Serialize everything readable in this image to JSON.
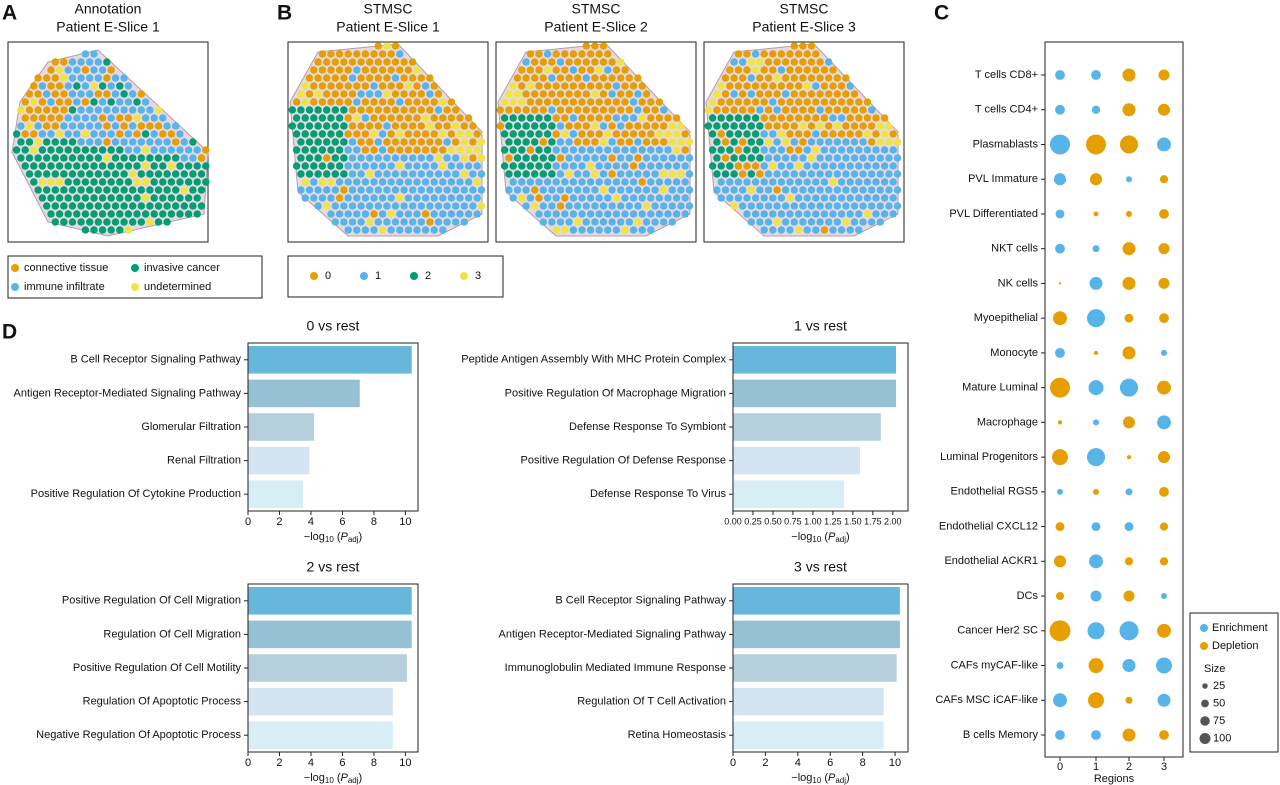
{
  "panel_labels": [
    "A",
    "B",
    "C",
    "D"
  ],
  "slices": [
    {
      "title": [
        "Annotation",
        "Patient E-Slice 1"
      ]
    },
    {
      "title": [
        "STMSC",
        "Patient E-Slice 1"
      ]
    },
    {
      "title": [
        "STMSC",
        "Patient E-Slice 2"
      ]
    },
    {
      "title": [
        "STMSC",
        "Patient E-Slice 3"
      ]
    }
  ],
  "annotation_legend": [
    {
      "label": "connective tissue",
      "color": "#e69f00"
    },
    {
      "label": "invasive cancer",
      "color": "#009e73"
    },
    {
      "label": "immune infiltrate",
      "color": "#56b4e9"
    },
    {
      "label": "undetermined",
      "color": "#f0e442"
    }
  ],
  "cluster_legend": [
    {
      "label": "0",
      "color": "#e69f00"
    },
    {
      "label": "1",
      "color": "#56b4e9"
    },
    {
      "label": "2",
      "color": "#009e73"
    },
    {
      "label": "3",
      "color": "#f0e442"
    }
  ],
  "chart_data": [
    {
      "type": "dot",
      "categories": [
        "T cells CD8+",
        "T cells CD4+",
        "Plasmablasts",
        "PVL Immature",
        "PVL Differentiated",
        "NKT cells",
        "NK cells",
        "Myoepithelial",
        "Monocyte",
        "Mature Luminal",
        "Macrophage",
        "Luminal Progenitors",
        "Endothelial RGS5",
        "Endothelial CXCL12",
        "Endothelial ACKR1",
        "DCs",
        "Cancer Her2 SC",
        "CAFs myCAF-like",
        "CAFs MSC iCAF-like",
        "B cells Memory"
      ],
      "x_categories": [
        "0",
        "1",
        "2",
        "3"
      ],
      "xlabel": "Regions",
      "series": [
        {
          "name": "Enrichment",
          "color": "#56b4e9",
          "values": [
            [
              80,
              80,
              null,
              null
            ],
            [
              80,
              55,
              null,
              null
            ],
            [
              330,
              null,
              null,
              160
            ],
            [
              120,
              null,
              30,
              null
            ],
            [
              65,
              null,
              null,
              null
            ],
            [
              80,
              40,
              null,
              null
            ],
            [
              null,
              140,
              null,
              null
            ],
            [
              null,
              270,
              null,
              null
            ],
            [
              80,
              null,
              null,
              30
            ],
            [
              null,
              185,
              270,
              null
            ],
            [
              null,
              30,
              null,
              160
            ],
            [
              null,
              270,
              null,
              null
            ],
            [
              30,
              null,
              40,
              null
            ],
            [
              null,
              65,
              65,
              null
            ],
            [
              null,
              160,
              null,
              null
            ],
            [
              null,
              100,
              null,
              30
            ],
            [
              null,
              240,
              300,
              null
            ],
            [
              40,
              null,
              140,
              210
            ],
            [
              160,
              null,
              null,
              140
            ],
            [
              80,
              80,
              null,
              null
            ]
          ]
        },
        {
          "name": "Depletion",
          "color": "#e69f00",
          "values": [
            [
              null,
              null,
              140,
              100
            ],
            [
              null,
              null,
              140,
              120
            ],
            [
              null,
              330,
              270,
              null
            ],
            [
              null,
              120,
              null,
              55
            ],
            [
              null,
              20,
              30,
              80
            ],
            [
              null,
              null,
              140,
              100
            ],
            [
              5,
              null,
              140,
              100
            ],
            [
              160,
              null,
              65,
              80
            ],
            [
              null,
              15,
              140,
              null
            ],
            [
              330,
              null,
              null,
              160
            ],
            [
              15,
              null,
              120,
              null
            ],
            [
              210,
              null,
              15,
              120
            ],
            [
              null,
              30,
              null,
              80
            ],
            [
              65,
              null,
              null,
              55
            ],
            [
              120,
              null,
              55,
              55
            ],
            [
              55,
              null,
              100,
              null
            ],
            [
              360,
              null,
              null,
              160
            ],
            [
              null,
              185,
              null,
              null
            ],
            [
              null,
              210,
              40,
              null
            ],
            [
              null,
              null,
              140,
              80
            ]
          ]
        }
      ],
      "size_legend": {
        "title": "Size",
        "values": [
          25,
          50,
          75,
          100
        ]
      }
    },
    {
      "type": "barh",
      "title": "0 vs rest",
      "categories": [
        "B Cell Receptor Signaling Pathway",
        "Antigen Receptor-Mediated Signaling Pathway",
        "Glomerular Filtration",
        "Renal Filtration",
        "Positive Regulation Of Cytokine Production"
      ],
      "values": [
        10.4,
        7.1,
        4.2,
        3.9,
        3.5
      ],
      "colors": [
        "#67b7da",
        "#96c0d3",
        "#b6cfdc",
        "#d4e4f2",
        "#d8eef6"
      ],
      "xlim": [
        0,
        10.8
      ],
      "xticks": [
        0,
        2,
        4,
        6,
        8,
        10
      ],
      "xlabel": [
        "−log",
        "10",
        " (",
        "P",
        "adj",
        ")"
      ]
    },
    {
      "type": "barh",
      "title": "1 vs rest",
      "categories": [
        "Peptide Antigen Assembly With MHC Protein Complex",
        "Positive Regulation Of Macrophage Migration",
        "Defense Response To Symbiont",
        "Positive Regulation Of Defense Response",
        "Defense Response To Virus"
      ],
      "values": [
        2.04,
        2.04,
        1.85,
        1.59,
        1.39
      ],
      "colors": [
        "#67b7da",
        "#96c0d3",
        "#b6cfdc",
        "#d4e4f2",
        "#d8eef6"
      ],
      "xlim": [
        0,
        2.19
      ],
      "xticks": [
        {
          "value": 0,
          "label": "0.00"
        },
        0.25,
        {
          "value": 0.5,
          "label": "0.50"
        },
        0.75,
        {
          "value": 1,
          "label": "1.00"
        },
        1.25,
        {
          "value": 1.5,
          "label": "1.50"
        },
        1.75,
        {
          "value": 2,
          "label": "2.00"
        }
      ],
      "xlabel": [
        "−log",
        "10",
        " (",
        "P",
        "adj",
        ")"
      ]
    },
    {
      "type": "barh",
      "title": "2 vs rest",
      "categories": [
        "Positive Regulation Of Cell Migration",
        "Regulation Of Cell Migration",
        "Positive Regulation Of Cell Motility",
        "Regulation Of Apoptotic Process",
        "Negative Regulation Of Apoptotic Process"
      ],
      "values": [
        10.4,
        10.4,
        10.1,
        9.2,
        9.2
      ],
      "colors": [
        "#67b7da",
        "#96c0d3",
        "#b6cfdc",
        "#d4e4f2",
        "#d8eef6"
      ],
      "xlim": [
        0,
        10.8
      ],
      "xticks": [
        0,
        2,
        4,
        6,
        8,
        10
      ],
      "xlabel": [
        "−log",
        "10",
        " (",
        "P",
        "adj",
        ")"
      ]
    },
    {
      "type": "barh",
      "title": "3 vs rest",
      "categories": [
        "B Cell Receptor Signaling Pathway",
        "Antigen Receptor-Mediated Signaling Pathway",
        "Immunoglobulin Mediated Immune Response",
        "Regulation Of T Cell Activation",
        "Retina Homeostasis"
      ],
      "values": [
        10.3,
        10.3,
        10.1,
        9.3,
        9.3
      ],
      "colors": [
        "#67b7da",
        "#96c0d3",
        "#b6cfdc",
        "#d4e4f2",
        "#d8eef6"
      ],
      "xlim": [
        0,
        10.8
      ],
      "xticks": [
        0,
        2,
        4,
        6,
        8,
        10
      ],
      "xlabel": [
        "−log",
        "10",
        " (",
        "P",
        "adj",
        ")"
      ]
    }
  ]
}
